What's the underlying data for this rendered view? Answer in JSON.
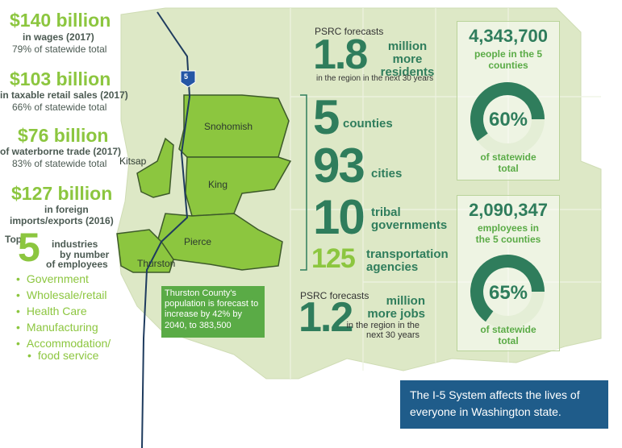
{
  "economy": [
    {
      "amount": "$140 billion",
      "desc": "in wages (2017)",
      "share": "79% of statewide total"
    },
    {
      "amount": "$103 billion",
      "desc": "in taxable retail sales (2017)",
      "share": "66% of statewide total"
    },
    {
      "amount": "$76 billion",
      "desc": "of waterborne trade (2017)",
      "share": "83% of statewide total"
    },
    {
      "amount": "$127 billion",
      "desc": [
        "in foreign",
        "imports/exports (2016)"
      ]
    }
  ],
  "industries": {
    "top": "Top",
    "count": 5,
    "desc": [
      "industries",
      "by number",
      "of employees"
    ],
    "items": [
      "Government",
      "Wholesale/retail",
      "Health Care",
      "Manufacturing",
      [
        "Accommodation/",
        "food service"
      ]
    ]
  },
  "map": {
    "i5": "5",
    "counties": [
      "Snohomish",
      "King",
      "Kitsap",
      "Pierce",
      "Thurston"
    ],
    "thurston_note": "Thurston County's population is forecast to increase by 42% by 2040, to 383,500"
  },
  "forecasts": [
    {
      "source": "PSRC forecasts",
      "number": 1.8,
      "unit": "million more residents",
      "period": "in the region in the next 30 years"
    },
    {
      "source": "PSRC forecasts",
      "number": 1.2,
      "unit": "million more jobs",
      "period": "in the region in the next 30 years"
    }
  ],
  "counts": [
    {
      "number": 5,
      "label": "counties"
    },
    {
      "number": 93,
      "label": "cities"
    },
    {
      "number": 10,
      "label": "tribal governments"
    },
    {
      "number": 125,
      "label": "transportation agencies"
    }
  ],
  "boxes": [
    {
      "number": "4,343,700",
      "desc": "people in the 5 counties",
      "percent": 60,
      "percent_label": "60%",
      "note": "of statewide total"
    },
    {
      "number": "2,090,347",
      "desc": "employees in the 5 counties",
      "percent": 65,
      "percent_label": "65%",
      "note": "of statewide total"
    }
  ],
  "footer": "The I-5 System affects the lives of everyone in Washington state."
}
